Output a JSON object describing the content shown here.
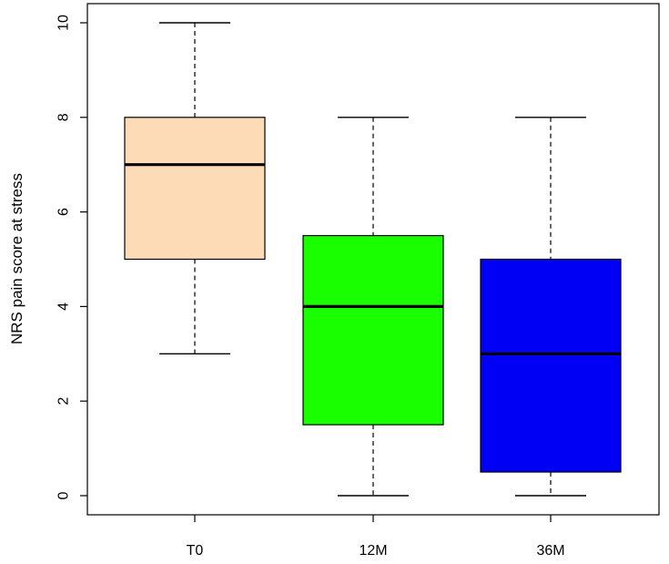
{
  "chart_data": {
    "type": "box",
    "title": "",
    "xlabel": "",
    "ylabel": "NRS pain score at stress",
    "ylim": [
      0,
      10
    ],
    "yticks": [
      0,
      2,
      4,
      6,
      8,
      10
    ],
    "grid": false,
    "categories": [
      "T0",
      "12M",
      "36M"
    ],
    "boxes": [
      {
        "name": "T0",
        "whisker_low": 3,
        "q1": 5,
        "median": 7,
        "q3": 8,
        "whisker_high": 10,
        "color": "#FDDBB6"
      },
      {
        "name": "12M",
        "whisker_low": 0,
        "q1": 1.5,
        "median": 4,
        "q3": 5.5,
        "whisker_high": 8,
        "color": "#19FF00"
      },
      {
        "name": "36M",
        "whisker_low": 0,
        "q1": 0.5,
        "median": 3,
        "q3": 5,
        "whisker_high": 8,
        "color": "#0000F5"
      }
    ]
  }
}
